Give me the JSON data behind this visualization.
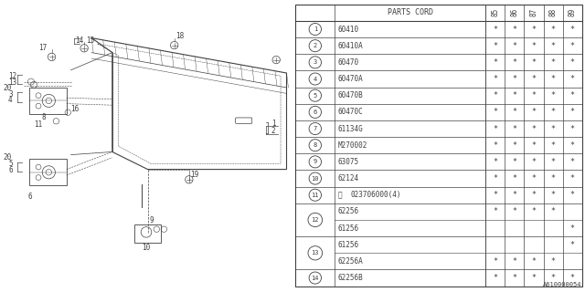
{
  "ref_code": "A610000054",
  "table": {
    "header_label": "PARTS CORD",
    "year_labels": [
      "85",
      "86",
      "87",
      "88",
      "89"
    ],
    "rows": [
      {
        "num": "1",
        "circled": true,
        "part": "60410",
        "marks": [
          "*",
          "*",
          "*",
          "*",
          "*"
        ]
      },
      {
        "num": "2",
        "circled": true,
        "part": "60410A",
        "marks": [
          "*",
          "*",
          "*",
          "*",
          "*"
        ]
      },
      {
        "num": "3",
        "circled": true,
        "part": "60470",
        "marks": [
          "*",
          "*",
          "*",
          "*",
          "*"
        ]
      },
      {
        "num": "4",
        "circled": true,
        "part": "60470A",
        "marks": [
          "*",
          "*",
          "*",
          "*",
          "*"
        ]
      },
      {
        "num": "5",
        "circled": true,
        "part": "60470B",
        "marks": [
          "*",
          "*",
          "*",
          "*",
          "*"
        ]
      },
      {
        "num": "6",
        "circled": true,
        "part": "60470C",
        "marks": [
          "*",
          "*",
          "*",
          "*",
          "*"
        ]
      },
      {
        "num": "7",
        "circled": true,
        "part": "61134G",
        "marks": [
          "*",
          "*",
          "*",
          "*",
          "*"
        ]
      },
      {
        "num": "8",
        "circled": true,
        "part": "M270002",
        "marks": [
          "*",
          "*",
          "*",
          "*",
          "*"
        ]
      },
      {
        "num": "9",
        "circled": true,
        "part": "63075",
        "marks": [
          "*",
          "*",
          "*",
          "*",
          "*"
        ]
      },
      {
        "num": "10",
        "circled": true,
        "part": "62124",
        "marks": [
          "*",
          "*",
          "*",
          "*",
          "*"
        ]
      },
      {
        "num": "11",
        "circled": true,
        "part": "N023706000(4)",
        "marks": [
          "*",
          "*",
          "*",
          "*",
          "*"
        ],
        "N_prefix": true
      },
      {
        "num": "12",
        "circled": true,
        "part": "62256",
        "marks": [
          "*",
          "*",
          "*",
          "*",
          ""
        ],
        "subA": true
      },
      {
        "num": "12",
        "circled": false,
        "part": "61256",
        "marks": [
          "",
          "",
          "",
          "",
          "*"
        ],
        "subB": true
      },
      {
        "num": "13",
        "circled": true,
        "part": "61256",
        "marks": [
          "",
          "",
          "",
          "",
          "*"
        ],
        "subA": true
      },
      {
        "num": "13",
        "circled": false,
        "part": "62256A",
        "marks": [
          "*",
          "*",
          "*",
          "*",
          ""
        ],
        "subB": true
      },
      {
        "num": "14",
        "circled": true,
        "part": "62256B",
        "marks": [
          "*",
          "*",
          "*",
          "*",
          "*"
        ]
      }
    ]
  },
  "bg_color": "#ffffff",
  "lc": "#404040",
  "tc": "#404040",
  "tfs": 6.0,
  "dfs": 5.5
}
